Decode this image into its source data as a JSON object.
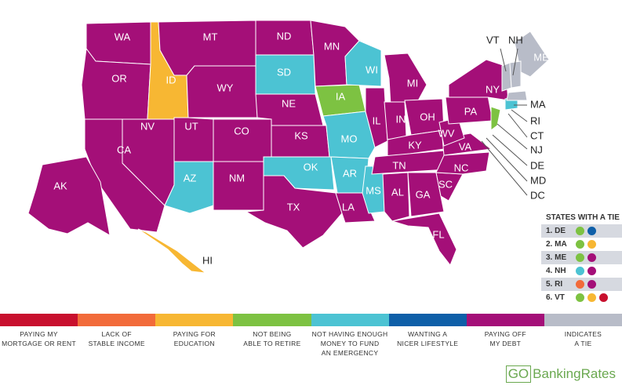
{
  "colors": {
    "mortgage": "#c8102e",
    "income": "#f26b3a",
    "education": "#f7b733",
    "retire": "#7dc242",
    "emergency": "#4cc3d3",
    "lifestyle": "#0e5fa8",
    "debt": "#a40f78",
    "tie": "#b8bcc8"
  },
  "states": [
    {
      "abbr": "WA",
      "category": "debt"
    },
    {
      "abbr": "OR",
      "category": "debt"
    },
    {
      "abbr": "CA",
      "category": "debt"
    },
    {
      "abbr": "NV",
      "category": "debt"
    },
    {
      "abbr": "ID",
      "category": "education"
    },
    {
      "abbr": "MT",
      "category": "debt"
    },
    {
      "abbr": "WY",
      "category": "debt"
    },
    {
      "abbr": "UT",
      "category": "debt"
    },
    {
      "abbr": "AZ",
      "category": "emergency"
    },
    {
      "abbr": "CO",
      "category": "debt"
    },
    {
      "abbr": "NM",
      "category": "debt"
    },
    {
      "abbr": "ND",
      "category": "debt"
    },
    {
      "abbr": "SD",
      "category": "emergency"
    },
    {
      "abbr": "NE",
      "category": "debt"
    },
    {
      "abbr": "KS",
      "category": "debt"
    },
    {
      "abbr": "OK",
      "category": "emergency"
    },
    {
      "abbr": "TX",
      "category": "debt"
    },
    {
      "abbr": "MN",
      "category": "debt"
    },
    {
      "abbr": "IA",
      "category": "retire"
    },
    {
      "abbr": "MO",
      "category": "emergency"
    },
    {
      "abbr": "AR",
      "category": "emergency"
    },
    {
      "abbr": "LA",
      "category": "debt"
    },
    {
      "abbr": "WI",
      "category": "emergency"
    },
    {
      "abbr": "IL",
      "category": "debt"
    },
    {
      "abbr": "MS",
      "category": "emergency"
    },
    {
      "abbr": "MI",
      "category": "debt"
    },
    {
      "abbr": "IN",
      "category": "debt"
    },
    {
      "abbr": "OH",
      "category": "debt"
    },
    {
      "abbr": "KY",
      "category": "debt"
    },
    {
      "abbr": "TN",
      "category": "debt"
    },
    {
      "abbr": "AL",
      "category": "debt"
    },
    {
      "abbr": "GA",
      "category": "debt"
    },
    {
      "abbr": "FL",
      "category": "debt"
    },
    {
      "abbr": "SC",
      "category": "debt"
    },
    {
      "abbr": "NC",
      "category": "debt"
    },
    {
      "abbr": "VA",
      "category": "debt"
    },
    {
      "abbr": "WV",
      "category": "debt"
    },
    {
      "abbr": "PA",
      "category": "debt"
    },
    {
      "abbr": "NY",
      "category": "debt"
    },
    {
      "abbr": "NJ",
      "category": "retire"
    },
    {
      "abbr": "CT",
      "category": "emergency"
    },
    {
      "abbr": "ME",
      "category": "tie"
    },
    {
      "abbr": "AK",
      "category": "debt"
    },
    {
      "abbr": "HI",
      "category": "education"
    }
  ],
  "external_labels": [
    "VT",
    "NH",
    "MA",
    "RI",
    "CT",
    "NJ",
    "DE",
    "MD",
    "DC"
  ],
  "tie_box": {
    "title": "STATES WITH A TIE",
    "rows": [
      {
        "label": "1. DE",
        "dots": [
          "retire",
          "lifestyle"
        ]
      },
      {
        "label": "2. MA",
        "dots": [
          "retire",
          "education"
        ]
      },
      {
        "label": "3. ME",
        "dots": [
          "retire",
          "debt"
        ]
      },
      {
        "label": "4. NH",
        "dots": [
          "emergency",
          "debt"
        ]
      },
      {
        "label": "5. RI",
        "dots": [
          "income",
          "debt"
        ]
      },
      {
        "label": "6. VT",
        "dots": [
          "retire",
          "education",
          "mortgage"
        ]
      }
    ]
  },
  "legend": [
    {
      "key": "mortgage",
      "line1": "PAYING MY",
      "line2": "MORTGAGE OR RENT",
      "line3": ""
    },
    {
      "key": "income",
      "line1": "LACK OF",
      "line2": "STABLE INCOME",
      "line3": ""
    },
    {
      "key": "education",
      "line1": "PAYING FOR",
      "line2": "EDUCATION",
      "line3": ""
    },
    {
      "key": "retire",
      "line1": "NOT BEING",
      "line2": "ABLE TO RETIRE",
      "line3": ""
    },
    {
      "key": "emergency",
      "line1": "NOT HAVING ENOUGH",
      "line2": "MONEY TO FUND",
      "line3": "AN EMERGENCY"
    },
    {
      "key": "lifestyle",
      "line1": "WANTING A",
      "line2": "NICER LIFESTYLE",
      "line3": ""
    },
    {
      "key": "debt",
      "line1": "PAYING OFF",
      "line2": "MY DEBT",
      "line3": ""
    },
    {
      "key": "tie",
      "line1": "INDICATES",
      "line2": "A TIE",
      "line3": ""
    }
  ],
  "brand": {
    "go": "GO",
    "rest": "BankingRates"
  }
}
